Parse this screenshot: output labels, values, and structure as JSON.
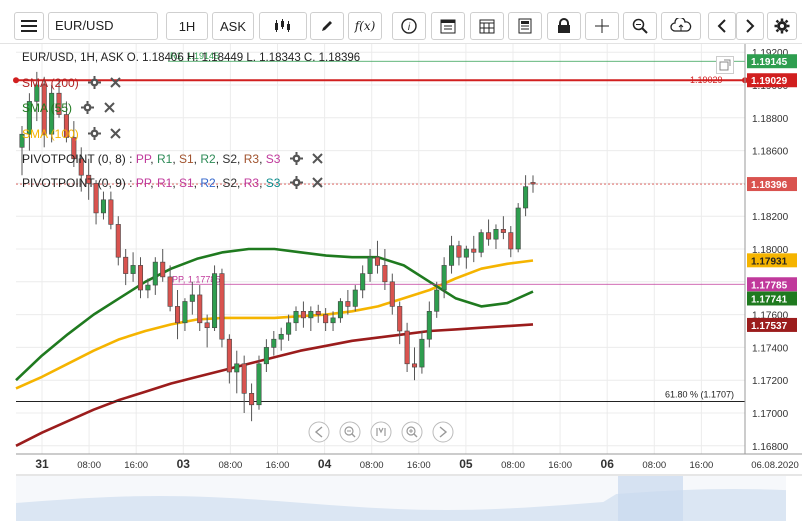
{
  "toolbar": {
    "symbol": "EUR/USD",
    "timeframe": "1H",
    "side": "ASK",
    "fx_label": "f(x)"
  },
  "ohlc_header": "EUR/USD, 1H, ASK   O. 1.18406 H. 1.18449 L. 1.18343 C. 1.18396",
  "indicators": [
    {
      "label": "SMA (200)",
      "color": "#b22222"
    },
    {
      "label": "SMA (55)",
      "color": "#1f7a1f"
    },
    {
      "label": "SMA (100)",
      "color": "#f5b400"
    }
  ],
  "pivots": [
    {
      "prefix": "PIVOTPOINT (0, 8)",
      "items": [
        {
          "t": "PP",
          "c": "#c0399b"
        },
        {
          "t": "R1",
          "c": "#2e8b57"
        },
        {
          "t": "S1",
          "c": "#a0522d"
        },
        {
          "t": "R2",
          "c": "#2e8b57"
        },
        {
          "t": "S2",
          "c": "#333333"
        },
        {
          "t": "R3",
          "c": "#a0522d"
        },
        {
          "t": "S3",
          "c": "#c0399b"
        }
      ]
    },
    {
      "prefix": "PIVOTPOINT (0, 9)",
      "items": [
        {
          "t": "PP",
          "c": "#c0399b"
        },
        {
          "t": "R1",
          "c": "#c0399b"
        },
        {
          "t": "S1",
          "c": "#c0399b"
        },
        {
          "t": "R2",
          "c": "#3366cc"
        },
        {
          "t": "S2",
          "c": "#333333"
        },
        {
          "t": "R3",
          "c": "#c0399b"
        },
        {
          "t": "S3",
          "c": "#0a8a8a"
        }
      ]
    }
  ],
  "chart_data": {
    "type": "candlestick",
    "symbol": "EUR/USD",
    "interval": "1H",
    "ylim": [
      1.1675,
      1.1925
    ],
    "y_ticks": [
      "1.19200",
      "1.19000",
      "1.18800",
      "1.18600",
      "1.18400",
      "1.18200",
      "1.18000",
      "1.17800",
      "1.17600",
      "1.17400",
      "1.17200",
      "1.17000",
      "1.16800"
    ],
    "x_ticks": [
      "31",
      "08:00",
      "16:00",
      "03",
      "08:00",
      "16:00",
      "04",
      "08:00",
      "16:00",
      "05",
      "08:00",
      "16:00",
      "06",
      "08:00",
      "16:00",
      "06.08.2020"
    ],
    "x_tick_bold": [
      true,
      false,
      false,
      true,
      false,
      false,
      true,
      false,
      false,
      true,
      false,
      false,
      true,
      false,
      false,
      false
    ],
    "price_tags": [
      {
        "label": "1.19145",
        "value": 1.19145,
        "color": "#2e9e4f"
      },
      {
        "label": "1.19029",
        "value": 1.19029,
        "color": "#d11f1f"
      },
      {
        "label": "1.18396",
        "value": 1.18396,
        "color": "#d9534f"
      },
      {
        "label": "1.17931",
        "value": 1.17931,
        "color": "#f5b400"
      },
      {
        "label": "1.17785",
        "value": 1.17785,
        "color": "#c0399b"
      },
      {
        "label": "1.17741",
        "value": 1.17741,
        "color": "#1f7a1f"
      },
      {
        "label": "1.17537",
        "value": 1.17537,
        "color": "#9b1c1c"
      }
    ],
    "annotations": {
      "r1_label": "R1, 1.19145",
      "pp_label": "PP, 1.17785",
      "red_line_label": "1.19029",
      "fib_label": "61.80 % (1.1707)"
    },
    "fib_level": 1.1707,
    "candles": [
      {
        "o": 1.1862,
        "h": 1.1875,
        "l": 1.1845,
        "c": 1.187
      },
      {
        "o": 1.187,
        "h": 1.1895,
        "l": 1.186,
        "c": 1.189
      },
      {
        "o": 1.189,
        "h": 1.1908,
        "l": 1.1878,
        "c": 1.19
      },
      {
        "o": 1.19,
        "h": 1.1905,
        "l": 1.1862,
        "c": 1.187
      },
      {
        "o": 1.187,
        "h": 1.19,
        "l": 1.1865,
        "c": 1.1895
      },
      {
        "o": 1.1895,
        "h": 1.1903,
        "l": 1.188,
        "c": 1.1882
      },
      {
        "o": 1.1882,
        "h": 1.189,
        "l": 1.1865,
        "c": 1.1868
      },
      {
        "o": 1.1868,
        "h": 1.1878,
        "l": 1.185,
        "c": 1.1855
      },
      {
        "o": 1.1855,
        "h": 1.1862,
        "l": 1.1835,
        "c": 1.1845
      },
      {
        "o": 1.1845,
        "h": 1.1855,
        "l": 1.183,
        "c": 1.184
      },
      {
        "o": 1.184,
        "h": 1.1842,
        "l": 1.1815,
        "c": 1.1822
      },
      {
        "o": 1.1822,
        "h": 1.1835,
        "l": 1.1818,
        "c": 1.183
      },
      {
        "o": 1.183,
        "h": 1.1835,
        "l": 1.1812,
        "c": 1.1815
      },
      {
        "o": 1.1815,
        "h": 1.182,
        "l": 1.179,
        "c": 1.1795
      },
      {
        "o": 1.1795,
        "h": 1.18,
        "l": 1.1778,
        "c": 1.1785
      },
      {
        "o": 1.1785,
        "h": 1.1798,
        "l": 1.178,
        "c": 1.179
      },
      {
        "o": 1.179,
        "h": 1.1795,
        "l": 1.177,
        "c": 1.1775
      },
      {
        "o": 1.1775,
        "h": 1.1782,
        "l": 1.177,
        "c": 1.1778
      },
      {
        "o": 1.1778,
        "h": 1.1795,
        "l": 1.1772,
        "c": 1.1792
      },
      {
        "o": 1.1792,
        "h": 1.18,
        "l": 1.178,
        "c": 1.1783
      },
      {
        "o": 1.1783,
        "h": 1.179,
        "l": 1.1762,
        "c": 1.1765
      },
      {
        "o": 1.1765,
        "h": 1.1775,
        "l": 1.1745,
        "c": 1.1755
      },
      {
        "o": 1.1755,
        "h": 1.177,
        "l": 1.175,
        "c": 1.1768
      },
      {
        "o": 1.1768,
        "h": 1.178,
        "l": 1.176,
        "c": 1.1772
      },
      {
        "o": 1.1772,
        "h": 1.1778,
        "l": 1.175,
        "c": 1.1755
      },
      {
        "o": 1.1755,
        "h": 1.176,
        "l": 1.174,
        "c": 1.1752
      },
      {
        "o": 1.1752,
        "h": 1.179,
        "l": 1.175,
        "c": 1.1785
      },
      {
        "o": 1.1785,
        "h": 1.1788,
        "l": 1.174,
        "c": 1.1745
      },
      {
        "o": 1.1745,
        "h": 1.1748,
        "l": 1.1718,
        "c": 1.1725
      },
      {
        "o": 1.1725,
        "h": 1.1738,
        "l": 1.1712,
        "c": 1.173
      },
      {
        "o": 1.173,
        "h": 1.1735,
        "l": 1.17,
        "c": 1.1712
      },
      {
        "o": 1.1712,
        "h": 1.1718,
        "l": 1.1695,
        "c": 1.1705
      },
      {
        "o": 1.1705,
        "h": 1.1735,
        "l": 1.1702,
        "c": 1.173
      },
      {
        "o": 1.173,
        "h": 1.1745,
        "l": 1.1725,
        "c": 1.174
      },
      {
        "o": 1.174,
        "h": 1.175,
        "l": 1.1735,
        "c": 1.1745
      },
      {
        "o": 1.1745,
        "h": 1.1752,
        "l": 1.1738,
        "c": 1.1748
      },
      {
        "o": 1.1748,
        "h": 1.176,
        "l": 1.1744,
        "c": 1.1755
      },
      {
        "o": 1.1755,
        "h": 1.1765,
        "l": 1.175,
        "c": 1.1762
      },
      {
        "o": 1.1762,
        "h": 1.1768,
        "l": 1.1752,
        "c": 1.1758
      },
      {
        "o": 1.1758,
        "h": 1.1765,
        "l": 1.175,
        "c": 1.1762
      },
      {
        "o": 1.1762,
        "h": 1.1766,
        "l": 1.1755,
        "c": 1.176
      },
      {
        "o": 1.176,
        "h": 1.1764,
        "l": 1.175,
        "c": 1.1755
      },
      {
        "o": 1.1755,
        "h": 1.1762,
        "l": 1.175,
        "c": 1.1758
      },
      {
        "o": 1.1758,
        "h": 1.177,
        "l": 1.1755,
        "c": 1.1768
      },
      {
        "o": 1.1768,
        "h": 1.1775,
        "l": 1.176,
        "c": 1.1765
      },
      {
        "o": 1.1765,
        "h": 1.1778,
        "l": 1.1762,
        "c": 1.1775
      },
      {
        "o": 1.1775,
        "h": 1.179,
        "l": 1.177,
        "c": 1.1785
      },
      {
        "o": 1.1785,
        "h": 1.18,
        "l": 1.178,
        "c": 1.1795
      },
      {
        "o": 1.1795,
        "h": 1.1805,
        "l": 1.1785,
        "c": 1.179
      },
      {
        "o": 1.179,
        "h": 1.18,
        "l": 1.1775,
        "c": 1.178
      },
      {
        "o": 1.178,
        "h": 1.1785,
        "l": 1.176,
        "c": 1.1765
      },
      {
        "o": 1.1765,
        "h": 1.1768,
        "l": 1.1742,
        "c": 1.175
      },
      {
        "o": 1.175,
        "h": 1.1755,
        "l": 1.1725,
        "c": 1.173
      },
      {
        "o": 1.173,
        "h": 1.174,
        "l": 1.172,
        "c": 1.1728
      },
      {
        "o": 1.1728,
        "h": 1.175,
        "l": 1.1724,
        "c": 1.1745
      },
      {
        "o": 1.1745,
        "h": 1.1768,
        "l": 1.174,
        "c": 1.1762
      },
      {
        "o": 1.1762,
        "h": 1.178,
        "l": 1.1758,
        "c": 1.1775
      },
      {
        "o": 1.1775,
        "h": 1.1795,
        "l": 1.177,
        "c": 1.179
      },
      {
        "o": 1.179,
        "h": 1.1808,
        "l": 1.1785,
        "c": 1.1802
      },
      {
        "o": 1.1802,
        "h": 1.1805,
        "l": 1.179,
        "c": 1.1795
      },
      {
        "o": 1.1795,
        "h": 1.1802,
        "l": 1.1788,
        "c": 1.18
      },
      {
        "o": 1.18,
        "h": 1.1808,
        "l": 1.1792,
        "c": 1.1798
      },
      {
        "o": 1.1798,
        "h": 1.1812,
        "l": 1.1795,
        "c": 1.181
      },
      {
        "o": 1.181,
        "h": 1.1818,
        "l": 1.1802,
        "c": 1.1806
      },
      {
        "o": 1.1806,
        "h": 1.1815,
        "l": 1.18,
        "c": 1.1812
      },
      {
        "o": 1.1812,
        "h": 1.182,
        "l": 1.1806,
        "c": 1.181
      },
      {
        "o": 1.181,
        "h": 1.1814,
        "l": 1.1795,
        "c": 1.18
      },
      {
        "o": 1.18,
        "h": 1.1828,
        "l": 1.1798,
        "c": 1.1825
      },
      {
        "o": 1.1825,
        "h": 1.1845,
        "l": 1.182,
        "c": 1.1838
      },
      {
        "o": 1.18406,
        "h": 1.18449,
        "l": 1.18343,
        "c": 1.18396
      }
    ],
    "sma55": [
      1.172,
      1.1735,
      1.1748,
      1.176,
      1.177,
      1.178,
      1.1788,
      1.1794,
      1.1798,
      1.18,
      1.18,
      1.1798,
      1.1796,
      1.1795,
      1.1795,
      1.179,
      1.178,
      1.177,
      1.1765,
      1.1767,
      1.1774
    ],
    "sma100": [
      1.1715,
      1.1722,
      1.173,
      1.1738,
      1.1745,
      1.175,
      1.1754,
      1.1757,
      1.1758,
      1.1758,
      1.1758,
      1.1759,
      1.176,
      1.1762,
      1.1765,
      1.177,
      1.1775,
      1.1782,
      1.1788,
      1.1791,
      1.1793
    ],
    "sma200": [
      1.168,
      1.1688,
      1.1695,
      1.1702,
      1.1708,
      1.1713,
      1.1718,
      1.1722,
      1.1726,
      1.173,
      1.1734,
      1.1738,
      1.1741,
      1.1744,
      1.1746,
      1.1748,
      1.175,
      1.1751,
      1.1752,
      1.1753,
      1.1754
    ]
  },
  "nav_controls": [
    "first",
    "zoom-out",
    "fit",
    "zoom-in",
    "last"
  ]
}
